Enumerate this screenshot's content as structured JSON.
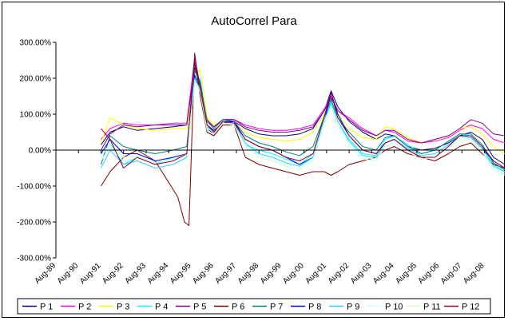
{
  "chart_data": {
    "type": "line",
    "title": "AutoCorrel Para",
    "xlabel": "",
    "ylabel": "",
    "ylim": [
      -300,
      300
    ],
    "yticks": [
      "300.00%",
      "200.00%",
      "100.00%",
      "0.00%",
      "-100.00%",
      "-200.00%",
      "-300.00%"
    ],
    "x_range": [
      1989.6,
      2009.5
    ],
    "categories": [
      "Aug-89",
      "Aug-90",
      "Aug-91",
      "Aug-92",
      "Aug-93",
      "Aug-94",
      "Aug-95",
      "Aug-96",
      "Aug-97",
      "Aug-98",
      "Aug-99",
      "Aug-00",
      "Aug-01",
      "Aug-02",
      "Aug-03",
      "Aug-04",
      "Aug-05",
      "Aug-06",
      "Aug-07",
      "Aug-08"
    ],
    "category_x": [
      1989.6,
      1990.6,
      1991.6,
      1992.6,
      1993.6,
      1994.6,
      1995.6,
      1996.6,
      1997.6,
      1998.6,
      1999.6,
      2000.6,
      2001.6,
      2002.6,
      2003.6,
      2004.6,
      2005.6,
      2006.6,
      2007.6,
      2008.6
    ],
    "grid": false,
    "legend_position": "bottom",
    "series": [
      {
        "name": "P 1",
        "color": "#000080",
        "x": [
          1991.6,
          1992.0,
          1992.6,
          1993.2,
          1994.0,
          1994.8,
          1995.4,
          1995.75,
          1996.0,
          1996.3,
          1996.6,
          1997.0,
          1997.5,
          1998.0,
          1998.6,
          1999.2,
          1999.8,
          2000.4,
          2001.0,
          2001.5,
          2001.8,
          2002.1,
          2002.6,
          2003.2,
          2003.8,
          2004.2,
          2004.6,
          2005.2,
          2005.8,
          2006.4,
          2007.0,
          2007.5,
          2008.0,
          2008.5,
          2009.0,
          2009.5
        ],
        "values": [
          15,
          50,
          65,
          55,
          60,
          65,
          70,
          245,
          150,
          70,
          55,
          75,
          80,
          60,
          45,
          40,
          40,
          45,
          60,
          110,
          165,
          120,
          80,
          50,
          30,
          45,
          40,
          10,
          0,
          5,
          20,
          40,
          50,
          30,
          -20,
          -40
        ]
      },
      {
        "name": "P 2",
        "color": "#FF00FF",
        "x": [
          1991.6,
          1992.0,
          1992.6,
          1993.2,
          1994.0,
          1994.8,
          1995.4,
          1995.75,
          1996.0,
          1996.3,
          1996.6,
          1997.0,
          1997.5,
          1998.0,
          1998.6,
          1999.2,
          1999.8,
          2000.4,
          2001.0,
          2001.5,
          2001.8,
          2002.1,
          2002.6,
          2003.2,
          2003.8,
          2004.2,
          2004.6,
          2005.2,
          2005.8,
          2006.4,
          2007.0,
          2007.5,
          2008.0,
          2008.5,
          2009.0,
          2009.5
        ],
        "values": [
          30,
          60,
          75,
          70,
          70,
          75,
          75,
          255,
          180,
          80,
          65,
          85,
          85,
          70,
          60,
          55,
          55,
          60,
          70,
          115,
          150,
          110,
          90,
          60,
          40,
          55,
          50,
          25,
          20,
          25,
          35,
          55,
          70,
          60,
          30,
          20
        ]
      },
      {
        "name": "P 3",
        "color": "#FFFF00",
        "x": [
          1991.6,
          1992.0,
          1992.6,
          1993.2,
          1994.0,
          1994.8,
          1995.4,
          1995.75,
          1996.0,
          1996.3,
          1996.6,
          1997.0,
          1997.5,
          1998.0,
          1998.6,
          1999.2,
          1999.8,
          2000.4,
          2001.0,
          2001.5,
          2001.8,
          2002.1,
          2002.6,
          2003.2,
          2003.8,
          2004.2,
          2004.6,
          2005.2,
          2005.8,
          2006.4,
          2007.0,
          2007.5,
          2008.0,
          2008.5,
          2009.0,
          2009.5
        ],
        "values": [
          20,
          90,
          70,
          60,
          55,
          60,
          60,
          200,
          225,
          90,
          70,
          80,
          80,
          50,
          35,
          30,
          25,
          30,
          50,
          100,
          140,
          100,
          60,
          35,
          30,
          65,
          60,
          35,
          20,
          30,
          40,
          60,
          65,
          45,
          10,
          -10
        ]
      },
      {
        "name": "P 4",
        "color": "#00FFFF",
        "x": [
          1991.6,
          1992.0,
          1992.6,
          1993.2,
          1994.0,
          1994.8,
          1995.4,
          1995.75,
          1996.0,
          1996.3,
          1996.6,
          1997.0,
          1997.5,
          1998.0,
          1998.6,
          1999.2,
          1999.8,
          2000.4,
          2001.0,
          2001.5,
          2001.8,
          2002.1,
          2002.6,
          2003.2,
          2003.8,
          2004.2,
          2004.6,
          2005.2,
          2005.8,
          2006.4,
          2007.0,
          2007.5,
          2008.0,
          2008.5,
          2009.0,
          2009.5
        ],
        "values": [
          -20,
          20,
          -40,
          -20,
          -40,
          -20,
          -10,
          185,
          200,
          70,
          50,
          80,
          75,
          15,
          0,
          -10,
          -25,
          -40,
          -10,
          90,
          135,
          80,
          30,
          -10,
          -15,
          30,
          40,
          15,
          -10,
          0,
          25,
          45,
          40,
          10,
          -40,
          -60
        ]
      },
      {
        "name": "P 5",
        "color": "#800080",
        "x": [
          1991.6,
          1992.0,
          1992.6,
          1993.2,
          1994.0,
          1994.8,
          1995.4,
          1995.75,
          1996.0,
          1996.3,
          1996.6,
          1997.0,
          1997.5,
          1998.0,
          1998.6,
          1999.2,
          1999.8,
          2000.4,
          2001.0,
          2001.5,
          2001.8,
          2002.1,
          2002.6,
          2003.2,
          2003.8,
          2004.2,
          2004.6,
          2005.2,
          2005.8,
          2006.4,
          2007.0,
          2007.5,
          2008.0,
          2008.5,
          2009.0,
          2009.5
        ],
        "values": [
          0,
          45,
          70,
          65,
          70,
          70,
          70,
          230,
          175,
          85,
          65,
          85,
          85,
          65,
          55,
          50,
          50,
          55,
          65,
          110,
          145,
          110,
          85,
          55,
          40,
          55,
          55,
          30,
          20,
          30,
          40,
          60,
          85,
          75,
          45,
          40
        ]
      },
      {
        "name": "P 6",
        "color": "#800000",
        "x": [
          1991.6,
          1992.0,
          1992.6,
          1993.2,
          1994.0,
          1994.5,
          1995.0,
          1995.3,
          1995.5,
          1995.75,
          1996.0,
          1996.3,
          1996.6,
          1997.0,
          1997.5,
          1998.0,
          1998.6,
          1999.2,
          1999.8,
          2000.4,
          2001.0,
          2001.5,
          2001.8,
          2002.1,
          2002.6,
          2003.2,
          2003.8,
          2004.2,
          2004.6,
          2005.2,
          2005.8,
          2006.4,
          2007.0,
          2007.5,
          2008.0,
          2008.5,
          2009.0,
          2009.5
        ],
        "values": [
          -100,
          -60,
          -20,
          0,
          -30,
          -80,
          -130,
          -200,
          -210,
          270,
          150,
          50,
          40,
          70,
          70,
          -20,
          -40,
          -50,
          -60,
          -70,
          -60,
          -60,
          -70,
          -60,
          -40,
          -30,
          -20,
          0,
          10,
          -10,
          -20,
          -30,
          -10,
          10,
          20,
          -10,
          -40,
          -50
        ]
      },
      {
        "name": "P 7",
        "color": "#008080",
        "x": [
          1991.6,
          1992.0,
          1992.6,
          1993.2,
          1994.0,
          1994.8,
          1995.4,
          1995.75,
          1996.0,
          1996.3,
          1996.6,
          1997.0,
          1997.5,
          1998.0,
          1998.6,
          1999.2,
          1999.8,
          2000.4,
          2001.0,
          2001.5,
          2001.8,
          2002.1,
          2002.6,
          2003.2,
          2003.8,
          2004.2,
          2004.6,
          2005.2,
          2005.8,
          2006.4,
          2007.0,
          2007.5,
          2008.0,
          2008.5,
          2009.0,
          2009.5
        ],
        "values": [
          -40,
          40,
          10,
          0,
          -10,
          0,
          10,
          220,
          190,
          80,
          60,
          85,
          80,
          40,
          20,
          10,
          -5,
          -15,
          10,
          95,
          140,
          90,
          50,
          10,
          0,
          35,
          40,
          10,
          -10,
          0,
          25,
          45,
          45,
          15,
          -35,
          -55
        ]
      },
      {
        "name": "P 8",
        "color": "#0000FF",
        "x": [
          1991.6,
          1992.0,
          1992.6,
          1993.2,
          1994.0,
          1994.8,
          1995.4,
          1995.75,
          1996.0,
          1996.3,
          1996.6,
          1997.0,
          1997.5,
          1998.0,
          1998.6,
          1999.2,
          1999.8,
          2000.4,
          2001.0,
          2001.5,
          2001.8,
          2002.1,
          2002.6,
          2003.2,
          2003.8,
          2004.2,
          2004.6,
          2005.2,
          2005.8,
          2006.4,
          2007.0,
          2007.5,
          2008.0,
          2008.5,
          2009.0,
          2009.5
        ],
        "values": [
          -10,
          30,
          -10,
          -10,
          -30,
          -20,
          -10,
          210,
          160,
          60,
          45,
          80,
          80,
          30,
          10,
          0,
          -20,
          -40,
          -20,
          80,
          160,
          100,
          40,
          0,
          -10,
          20,
          30,
          0,
          -20,
          -20,
          10,
          40,
          35,
          5,
          -30,
          -50
        ]
      },
      {
        "name": "P 9",
        "color": "#33CCFF",
        "x": [
          1991.6,
          1992.0,
          1992.6,
          1993.2,
          1994.0,
          1994.8,
          1995.4,
          1995.75,
          1996.0,
          1996.3,
          1996.6,
          1997.0,
          1997.5,
          1998.0,
          1998.6,
          1999.2,
          1999.8,
          2000.4,
          2001.0,
          2001.5,
          2001.8,
          2002.1,
          2002.6,
          2003.2,
          2003.8,
          2004.2,
          2004.6,
          2005.2,
          2005.8,
          2006.4,
          2007.0,
          2007.5,
          2008.0,
          2008.5,
          2009.0,
          2009.5
        ],
        "values": [
          -50,
          0,
          -40,
          -30,
          -50,
          -40,
          -20,
          200,
          170,
          65,
          50,
          80,
          75,
          20,
          -10,
          -20,
          -35,
          -45,
          -20,
          85,
          130,
          80,
          25,
          -15,
          -20,
          20,
          30,
          5,
          -15,
          -10,
          15,
          40,
          35,
          5,
          -45,
          -60
        ]
      },
      {
        "name": "P 10",
        "color": "#CCFFFF",
        "x": [
          1991.6,
          1992.0,
          1992.6,
          1993.2,
          1994.0,
          1994.8,
          1995.4,
          1995.75,
          1996.0,
          1996.3,
          1996.6,
          1997.0,
          1997.5,
          1998.0,
          1998.6,
          1999.2,
          1999.8,
          2000.4,
          2001.0,
          2001.5,
          2001.8,
          2002.1,
          2002.6,
          2003.2,
          2003.8,
          2004.2,
          2004.6,
          2005.2,
          2005.8,
          2006.4,
          2007.0,
          2007.5,
          2008.0,
          2008.5,
          2009.0,
          2009.5
        ],
        "values": [
          -30,
          10,
          -30,
          -20,
          -40,
          -30,
          -15,
          195,
          165,
          60,
          50,
          75,
          70,
          15,
          -15,
          -25,
          -40,
          -50,
          -25,
          80,
          125,
          75,
          20,
          -20,
          -25,
          15,
          25,
          0,
          -20,
          -15,
          10,
          35,
          30,
          0,
          -50,
          -65
        ]
      },
      {
        "name": "P 11",
        "color": "#CCFFCC",
        "x": [
          1991.6,
          1992.0,
          1992.6,
          1993.2,
          1994.0,
          1994.8,
          1995.4,
          1995.75,
          1996.0,
          1996.3,
          1996.6,
          1997.0,
          1997.5,
          1998.0,
          1998.6,
          1999.2,
          1999.8,
          2000.4,
          2001.0,
          2001.5,
          2001.8,
          2002.1,
          2002.6,
          2003.2,
          2003.8,
          2004.2,
          2004.6,
          2005.2,
          2005.8,
          2006.4,
          2007.0,
          2007.5,
          2008.0,
          2008.5,
          2009.0,
          2009.5
        ],
        "values": [
          -20,
          20,
          -20,
          -15,
          -35,
          -25,
          -10,
          190,
          160,
          55,
          45,
          75,
          70,
          10,
          -20,
          -30,
          -45,
          -55,
          -30,
          75,
          120,
          70,
          15,
          -25,
          -30,
          10,
          20,
          -5,
          -25,
          -20,
          5,
          30,
          25,
          -5,
          -55,
          -70
        ]
      },
      {
        "name": "P 12",
        "color": "#990033",
        "x": [
          1991.6,
          1992.0,
          1992.6,
          1993.2,
          1994.0,
          1994.8,
          1995.4,
          1995.75,
          1996.0,
          1996.3,
          1996.6,
          1997.0,
          1997.5,
          1998.0,
          1998.6,
          1999.2,
          1999.8,
          2000.4,
          2001.0,
          2001.5,
          2001.8,
          2002.1,
          2002.6,
          2003.2,
          2003.8,
          2004.2,
          2004.6,
          2005.2,
          2005.8,
          2006.4,
          2007.0,
          2007.5,
          2008.0,
          2008.5,
          2009.0,
          2009.5
        ],
        "values": [
          60,
          30,
          -50,
          -20,
          -40,
          -30,
          -10,
          265,
          170,
          70,
          50,
          80,
          75,
          30,
          10,
          0,
          -20,
          -30,
          -10,
          95,
          160,
          90,
          40,
          0,
          -10,
          20,
          30,
          0,
          -20,
          -20,
          10,
          40,
          40,
          10,
          -30,
          -50
        ]
      }
    ]
  }
}
